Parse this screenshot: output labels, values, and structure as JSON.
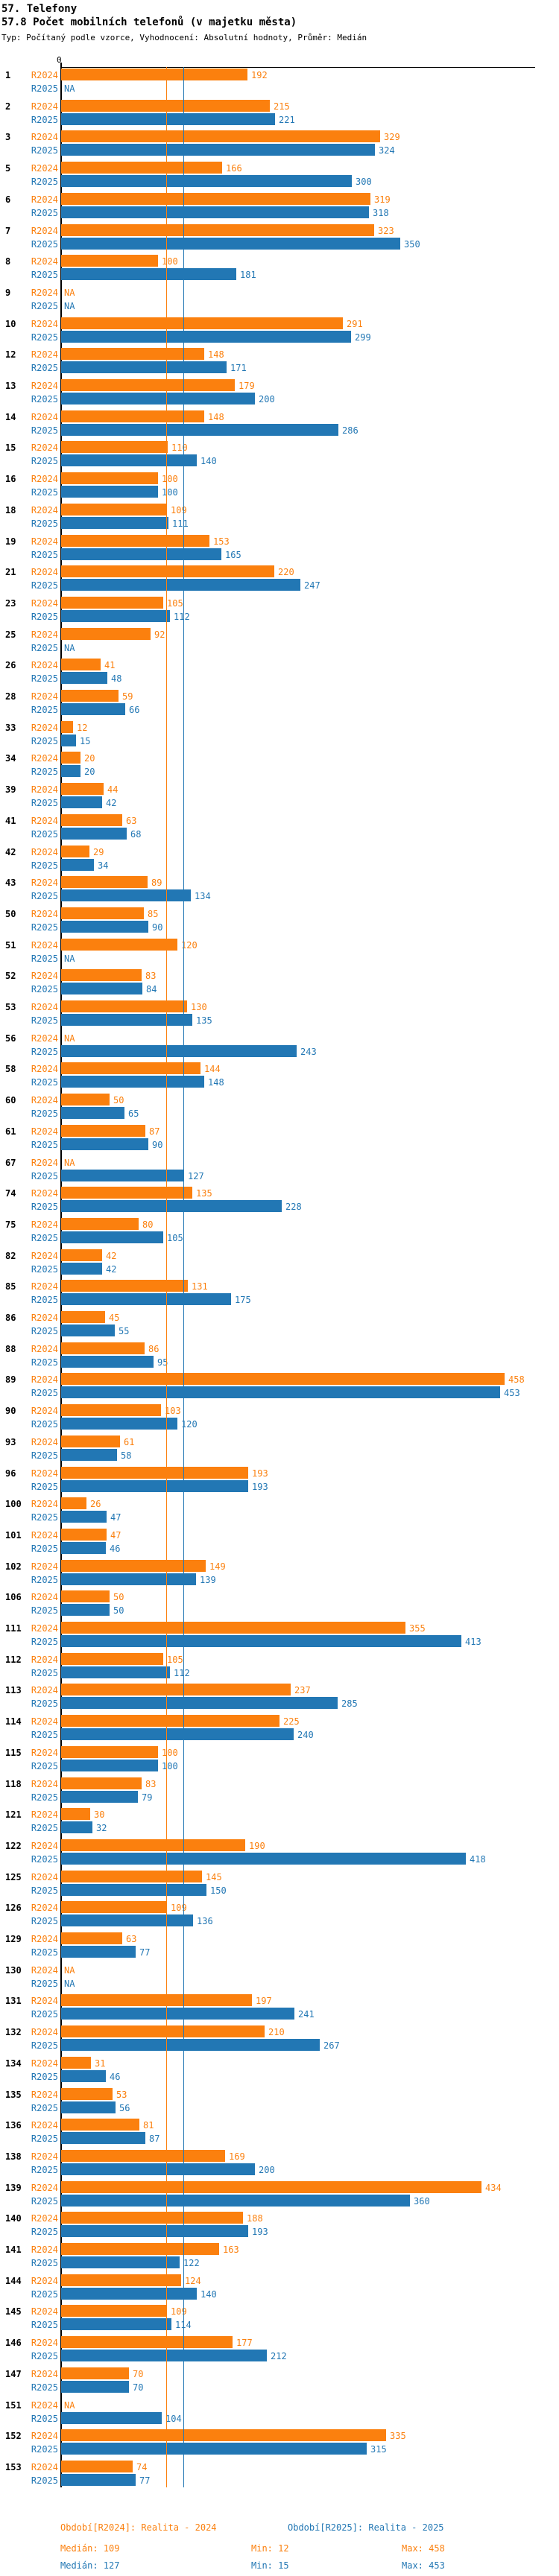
{
  "header": {
    "title": "57. Telefony",
    "subtitle": "57.8 Počet mobilních telefonů (v majetku města)",
    "meta": "Typ: Počítaný podle vzorce, Vyhodnocení: Absolutní hodnoty, Průměr: Medián"
  },
  "chart_data": {
    "type": "bar",
    "orientation": "horizontal",
    "title": "57.8 Počet mobilních telefonů (v majetku města)",
    "xlabel": "",
    "ylabel": "",
    "axis_zero_label": "0",
    "xlim": [
      0,
      490
    ],
    "grid": false,
    "na_label": "NA",
    "legend_position": "bottom",
    "series": [
      {
        "name": "R2024",
        "color": "#fb800e",
        "period_label": "Období[R2024]: Realita - 2024",
        "median": 109,
        "min": 12,
        "max": 458
      },
      {
        "name": "R2025",
        "color": "#2277b4",
        "period_label": "Období[R2025]: Realita - 2025",
        "median": 127,
        "min": 15,
        "max": 453
      }
    ],
    "reference_lines": [
      {
        "series": "R2024",
        "value": 109,
        "color": "#fb800e"
      },
      {
        "series": "R2025",
        "value": 127,
        "color": "#2277b4"
      }
    ],
    "rows": [
      {
        "id": "1",
        "v2024": 192,
        "v2025": "NA"
      },
      {
        "id": "2",
        "v2024": 215,
        "v2025": 221
      },
      {
        "id": "3",
        "v2024": 329,
        "v2025": 324
      },
      {
        "id": "5",
        "v2024": 166,
        "v2025": 300
      },
      {
        "id": "6",
        "v2024": 319,
        "v2025": 318
      },
      {
        "id": "7",
        "v2024": 323,
        "v2025": 350
      },
      {
        "id": "8",
        "v2024": 100,
        "v2025": 181
      },
      {
        "id": "9",
        "v2024": "NA",
        "v2025": "NA"
      },
      {
        "id": "10",
        "v2024": 291,
        "v2025": 299
      },
      {
        "id": "12",
        "v2024": 148,
        "v2025": 171
      },
      {
        "id": "13",
        "v2024": 179,
        "v2025": 200
      },
      {
        "id": "14",
        "v2024": 148,
        "v2025": 286
      },
      {
        "id": "15",
        "v2024": 110,
        "v2025": 140
      },
      {
        "id": "16",
        "v2024": 100,
        "v2025": 100
      },
      {
        "id": "18",
        "v2024": 109,
        "v2025": 111
      },
      {
        "id": "19",
        "v2024": 153,
        "v2025": 165
      },
      {
        "id": "21",
        "v2024": 220,
        "v2025": 247
      },
      {
        "id": "23",
        "v2024": 105,
        "v2025": 112
      },
      {
        "id": "25",
        "v2024": 92,
        "v2025": "NA"
      },
      {
        "id": "26",
        "v2024": 41,
        "v2025": 48
      },
      {
        "id": "28",
        "v2024": 59,
        "v2025": 66
      },
      {
        "id": "33",
        "v2024": 12,
        "v2025": 15
      },
      {
        "id": "34",
        "v2024": 20,
        "v2025": 20
      },
      {
        "id": "39",
        "v2024": 44,
        "v2025": 42
      },
      {
        "id": "41",
        "v2024": 63,
        "v2025": 68
      },
      {
        "id": "42",
        "v2024": 29,
        "v2025": 34
      },
      {
        "id": "43",
        "v2024": 89,
        "v2025": 134
      },
      {
        "id": "50",
        "v2024": 85,
        "v2025": 90
      },
      {
        "id": "51",
        "v2024": 120,
        "v2025": "NA"
      },
      {
        "id": "52",
        "v2024": 83,
        "v2025": 84
      },
      {
        "id": "53",
        "v2024": 130,
        "v2025": 135
      },
      {
        "id": "56",
        "v2024": "NA",
        "v2025": 243
      },
      {
        "id": "58",
        "v2024": 144,
        "v2025": 148
      },
      {
        "id": "60",
        "v2024": 50,
        "v2025": 65
      },
      {
        "id": "61",
        "v2024": 87,
        "v2025": 90
      },
      {
        "id": "67",
        "v2024": "NA",
        "v2025": 127
      },
      {
        "id": "74",
        "v2024": 135,
        "v2025": 228
      },
      {
        "id": "75",
        "v2024": 80,
        "v2025": 105
      },
      {
        "id": "82",
        "v2024": 42,
        "v2025": 42
      },
      {
        "id": "85",
        "v2024": 131,
        "v2025": 175
      },
      {
        "id": "86",
        "v2024": 45,
        "v2025": 55
      },
      {
        "id": "88",
        "v2024": 86,
        "v2025": 95
      },
      {
        "id": "89",
        "v2024": 458,
        "v2025": 453
      },
      {
        "id": "90",
        "v2024": 103,
        "v2025": 120
      },
      {
        "id": "93",
        "v2024": 61,
        "v2025": 58
      },
      {
        "id": "96",
        "v2024": 193,
        "v2025": 193
      },
      {
        "id": "100",
        "v2024": 26,
        "v2025": 47
      },
      {
        "id": "101",
        "v2024": 47,
        "v2025": 46
      },
      {
        "id": "102",
        "v2024": 149,
        "v2025": 139
      },
      {
        "id": "106",
        "v2024": 50,
        "v2025": 50
      },
      {
        "id": "111",
        "v2024": 355,
        "v2025": 413
      },
      {
        "id": "112",
        "v2024": 105,
        "v2025": 112
      },
      {
        "id": "113",
        "v2024": 237,
        "v2025": 285
      },
      {
        "id": "114",
        "v2024": 225,
        "v2025": 240
      },
      {
        "id": "115",
        "v2024": 100,
        "v2025": 100
      },
      {
        "id": "118",
        "v2024": 83,
        "v2025": 79
      },
      {
        "id": "121",
        "v2024": 30,
        "v2025": 32
      },
      {
        "id": "122",
        "v2024": 190,
        "v2025": 418
      },
      {
        "id": "125",
        "v2024": 145,
        "v2025": 150
      },
      {
        "id": "126",
        "v2024": 109,
        "v2025": 136
      },
      {
        "id": "129",
        "v2024": 63,
        "v2025": 77
      },
      {
        "id": "130",
        "v2024": "NA",
        "v2025": "NA"
      },
      {
        "id": "131",
        "v2024": 197,
        "v2025": 241
      },
      {
        "id": "132",
        "v2024": 210,
        "v2025": 267
      },
      {
        "id": "134",
        "v2024": 31,
        "v2025": 46
      },
      {
        "id": "135",
        "v2024": 53,
        "v2025": 56
      },
      {
        "id": "136",
        "v2024": 81,
        "v2025": 87
      },
      {
        "id": "138",
        "v2024": 169,
        "v2025": 200
      },
      {
        "id": "139",
        "v2024": 434,
        "v2025": 360
      },
      {
        "id": "140",
        "v2024": 188,
        "v2025": 193
      },
      {
        "id": "141",
        "v2024": 163,
        "v2025": 122
      },
      {
        "id": "144",
        "v2024": 124,
        "v2025": 140
      },
      {
        "id": "145",
        "v2024": 109,
        "v2025": 114
      },
      {
        "id": "146",
        "v2024": 177,
        "v2025": 212
      },
      {
        "id": "147",
        "v2024": 70,
        "v2025": 70
      },
      {
        "id": "151",
        "v2024": "NA",
        "v2025": 104
      },
      {
        "id": "152",
        "v2024": 335,
        "v2025": 315
      },
      {
        "id": "153",
        "v2024": 74,
        "v2025": 77
      }
    ]
  },
  "legend": {
    "period2024": "Období[R2024]: Realita - 2024",
    "period2025": "Období[R2025]: Realita - 2025",
    "median2024": "Medián: 109",
    "min2024": "Min: 12",
    "max2024": "Max: 458",
    "median2025": "Medián: 127",
    "min2025": "Min: 15",
    "max2025": "Max: 453"
  }
}
